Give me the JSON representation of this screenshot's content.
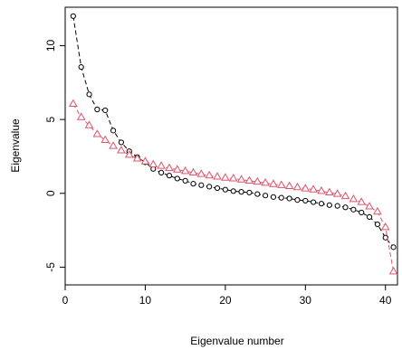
{
  "chart_data": {
    "type": "scatter",
    "title": "",
    "xlabel": "Eigenvalue number",
    "ylabel": "Eigenvalue",
    "xlim": [
      0,
      41.5
    ],
    "ylim": [
      -6.2,
      12.6
    ],
    "xticks": [
      0,
      10,
      20,
      30,
      40
    ],
    "yticks": [
      -5,
      0,
      5,
      10
    ],
    "grid": false,
    "legend": "none",
    "series": [
      {
        "marker": "circle",
        "line": "dashed",
        "color": "#000000",
        "x": [
          1,
          2,
          3,
          4,
          5,
          6,
          7,
          8,
          9,
          10,
          11,
          12,
          13,
          14,
          15,
          16,
          17,
          18,
          19,
          20,
          21,
          22,
          23,
          24,
          25,
          26,
          27,
          28,
          29,
          30,
          31,
          32,
          33,
          34,
          35,
          36,
          37,
          38,
          39,
          40,
          41
        ],
        "y": [
          12.0,
          8.55,
          6.7,
          5.68,
          5.62,
          4.25,
          3.45,
          2.85,
          2.45,
          2.1,
          1.65,
          1.4,
          1.2,
          1.0,
          0.85,
          0.65,
          0.55,
          0.45,
          0.35,
          0.25,
          0.15,
          0.1,
          0.05,
          -0.05,
          -0.15,
          -0.25,
          -0.3,
          -0.35,
          -0.45,
          -0.5,
          -0.6,
          -0.7,
          -0.8,
          -0.85,
          -0.95,
          -1.1,
          -1.3,
          -1.6,
          -2.1,
          -3.0,
          -3.65
        ]
      },
      {
        "marker": "triangle",
        "line": "dashed",
        "color": "#df536b",
        "x": [
          1,
          2,
          3,
          4,
          5,
          6,
          7,
          8,
          9,
          10,
          11,
          12,
          13,
          14,
          15,
          16,
          17,
          18,
          19,
          20,
          21,
          22,
          23,
          24,
          25,
          26,
          27,
          28,
          29,
          30,
          31,
          32,
          33,
          34,
          35,
          36,
          37,
          38,
          39,
          40,
          41
        ],
        "y": [
          6.05,
          5.15,
          4.6,
          4.0,
          3.6,
          3.2,
          2.9,
          2.6,
          2.35,
          2.15,
          1.95,
          1.85,
          1.7,
          1.6,
          1.5,
          1.4,
          1.3,
          1.2,
          1.12,
          1.05,
          1.0,
          0.92,
          0.85,
          0.78,
          0.7,
          0.62,
          0.55,
          0.48,
          0.4,
          0.32,
          0.25,
          0.15,
          0.05,
          -0.05,
          -0.2,
          -0.4,
          -0.6,
          -0.9,
          -1.25,
          -2.3,
          -5.3
        ]
      }
    ]
  }
}
